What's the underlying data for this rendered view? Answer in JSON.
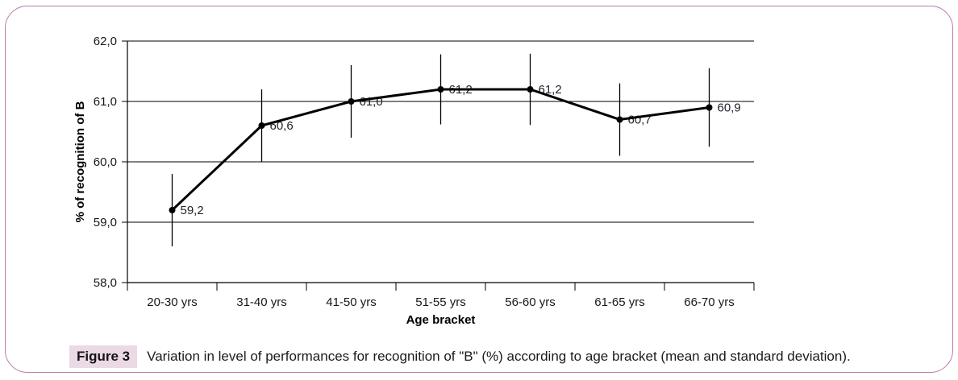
{
  "colors": {
    "frame_border": "#b97ba8",
    "figure_label_bg": "#ecd9e6",
    "line": "#000000",
    "marker": "#000000",
    "gridline": "#000000",
    "data_label_text": "#23232e",
    "tick_text": "#16161e",
    "caption_text": "#1b1b1b"
  },
  "caption": {
    "label": "Figure 3",
    "text": "Variation in level of performances for recognition of \"B\" (%) according to age bracket (mean and standard deviation)."
  },
  "chart_data": {
    "type": "line",
    "title": "",
    "xlabel": "Age bracket",
    "ylabel": "% of recognition of B",
    "categories": [
      "20-30 yrs",
      "31-40 yrs",
      "41-50 yrs",
      "51-55 yrs",
      "56-60 yrs",
      "61-65 yrs",
      "66-70 yrs"
    ],
    "series": [
      {
        "name": "% of recognition of B (mean)",
        "values": [
          59.2,
          60.6,
          61.0,
          61.2,
          61.2,
          60.7,
          60.9
        ],
        "labels": [
          "59,2",
          "60,6",
          "61,0",
          "61,2",
          "61,2",
          "60,7",
          "60,9"
        ],
        "errors": [
          0.6,
          0.6,
          0.6,
          0.58,
          0.59,
          0.6,
          0.65
        ]
      }
    ],
    "error_bars": "standard deviation (estimated from plot)",
    "ylim": [
      58.0,
      62.0
    ],
    "ytick_step": 1.0,
    "ytick_labels": [
      "58,0",
      "59,0",
      "60,0",
      "61,0",
      "62,0"
    ],
    "grid": "horizontal",
    "legend": "none"
  }
}
